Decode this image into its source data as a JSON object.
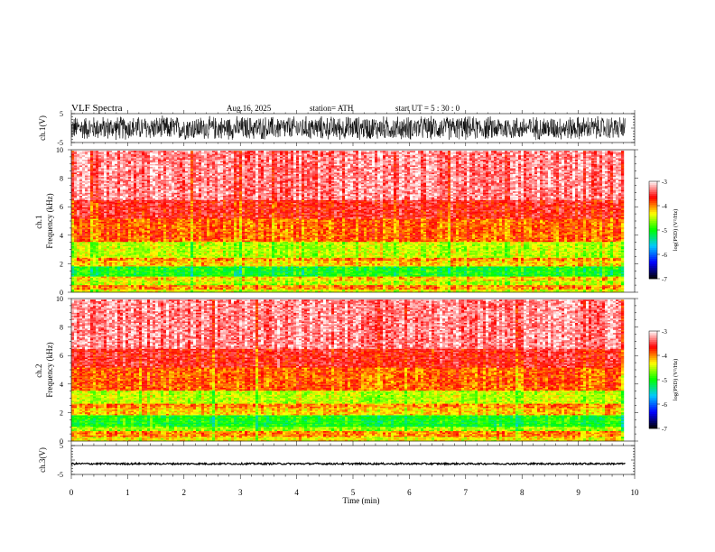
{
  "header": {
    "title": "VLF  Spectra",
    "date": "Aug.16, 2025",
    "station": "station= ATH",
    "start": "start  UT  =    5  : 30 : 0"
  },
  "chart_data": [
    {
      "type": "line",
      "name": "ch1-waveform",
      "ylabel": "ch.1(V)",
      "ylim": [
        -5,
        5
      ],
      "yticks": [
        "5",
        "-5"
      ],
      "xlim": [
        0,
        10
      ],
      "amplitude_range": [
        -4.5,
        4.5
      ],
      "color": "#000000"
    },
    {
      "type": "heatmap",
      "name": "ch1-spectrogram",
      "ylabel": "ch.1\nFrequency  (kHz)",
      "ylim": [
        0,
        10
      ],
      "yticks": [
        "0",
        "2",
        "4",
        "6",
        "8",
        "10"
      ],
      "xlim": [
        0,
        9.83
      ],
      "band_levels": [
        {
          "from": 0.0,
          "to": 0.25,
          "level": -4.4
        },
        {
          "from": 0.25,
          "to": 0.55,
          "level": -4.0
        },
        {
          "from": 0.55,
          "to": 0.8,
          "level": -4.5
        },
        {
          "from": 0.8,
          "to": 1.1,
          "level": -4.2
        },
        {
          "from": 1.1,
          "to": 1.8,
          "level": -5.0
        },
        {
          "from": 1.8,
          "to": 2.2,
          "level": -4.2
        },
        {
          "from": 2.2,
          "to": 2.5,
          "level": -4.0
        },
        {
          "from": 2.5,
          "to": 3.6,
          "level": -4.5
        },
        {
          "from": 3.6,
          "to": 5.2,
          "level": -3.9
        },
        {
          "from": 5.2,
          "to": 6.5,
          "level": -3.6
        },
        {
          "from": 6.5,
          "to": 10.0,
          "level": -3.3
        }
      ],
      "colorbar": {
        "label": "log(PSD) (V²/Hz)",
        "min": -7,
        "max": -3,
        "ticks": [
          "-3",
          "-4",
          "-5",
          "-6",
          "-7"
        ]
      }
    },
    {
      "type": "heatmap",
      "name": "ch2-spectrogram",
      "ylabel": "ch.2\nFrequency  (kHz)",
      "ylim": [
        0,
        10
      ],
      "yticks": [
        "0",
        "2",
        "4",
        "6",
        "8",
        "10"
      ],
      "xlim": [
        0,
        9.83
      ],
      "band_levels": [
        {
          "from": 0.0,
          "to": 0.3,
          "level": -4.3
        },
        {
          "from": 0.3,
          "to": 0.7,
          "level": -4.0
        },
        {
          "from": 0.7,
          "to": 1.0,
          "level": -4.6
        },
        {
          "from": 1.0,
          "to": 1.8,
          "level": -5.0
        },
        {
          "from": 1.8,
          "to": 2.3,
          "level": -4.2
        },
        {
          "from": 2.3,
          "to": 2.7,
          "level": -4.0
        },
        {
          "from": 2.7,
          "to": 3.6,
          "level": -4.5
        },
        {
          "from": 3.6,
          "to": 5.2,
          "level": -3.9
        },
        {
          "from": 5.2,
          "to": 6.5,
          "level": -3.6
        },
        {
          "from": 6.5,
          "to": 10.0,
          "level": -3.3
        }
      ],
      "colorbar": {
        "label": "log(PSD) (V²/Hz)",
        "min": -7,
        "max": -3,
        "ticks": [
          "-3",
          "-4",
          "-5",
          "-6",
          "-7"
        ]
      }
    },
    {
      "type": "line",
      "name": "ch3-waveform",
      "ylabel": "ch.3(V)",
      "ylim": [
        -5,
        5
      ],
      "yticks": [
        "5",
        "-5"
      ],
      "xlim": [
        0,
        10
      ],
      "level": -1.3,
      "amplitude_range": [
        -0.3,
        0.3
      ],
      "color": "#000000"
    }
  ],
  "xaxis": {
    "label": "Time  (min)",
    "ticks": [
      "0",
      "1",
      "2",
      "3",
      "4",
      "5",
      "6",
      "7",
      "8",
      "9",
      "10"
    ],
    "xlim": [
      0,
      10
    ]
  },
  "colormap": [
    "#000000",
    "#0000ff",
    "#00c8ff",
    "#00ff00",
    "#ffff00",
    "#ff0000",
    "#ffffff"
  ]
}
